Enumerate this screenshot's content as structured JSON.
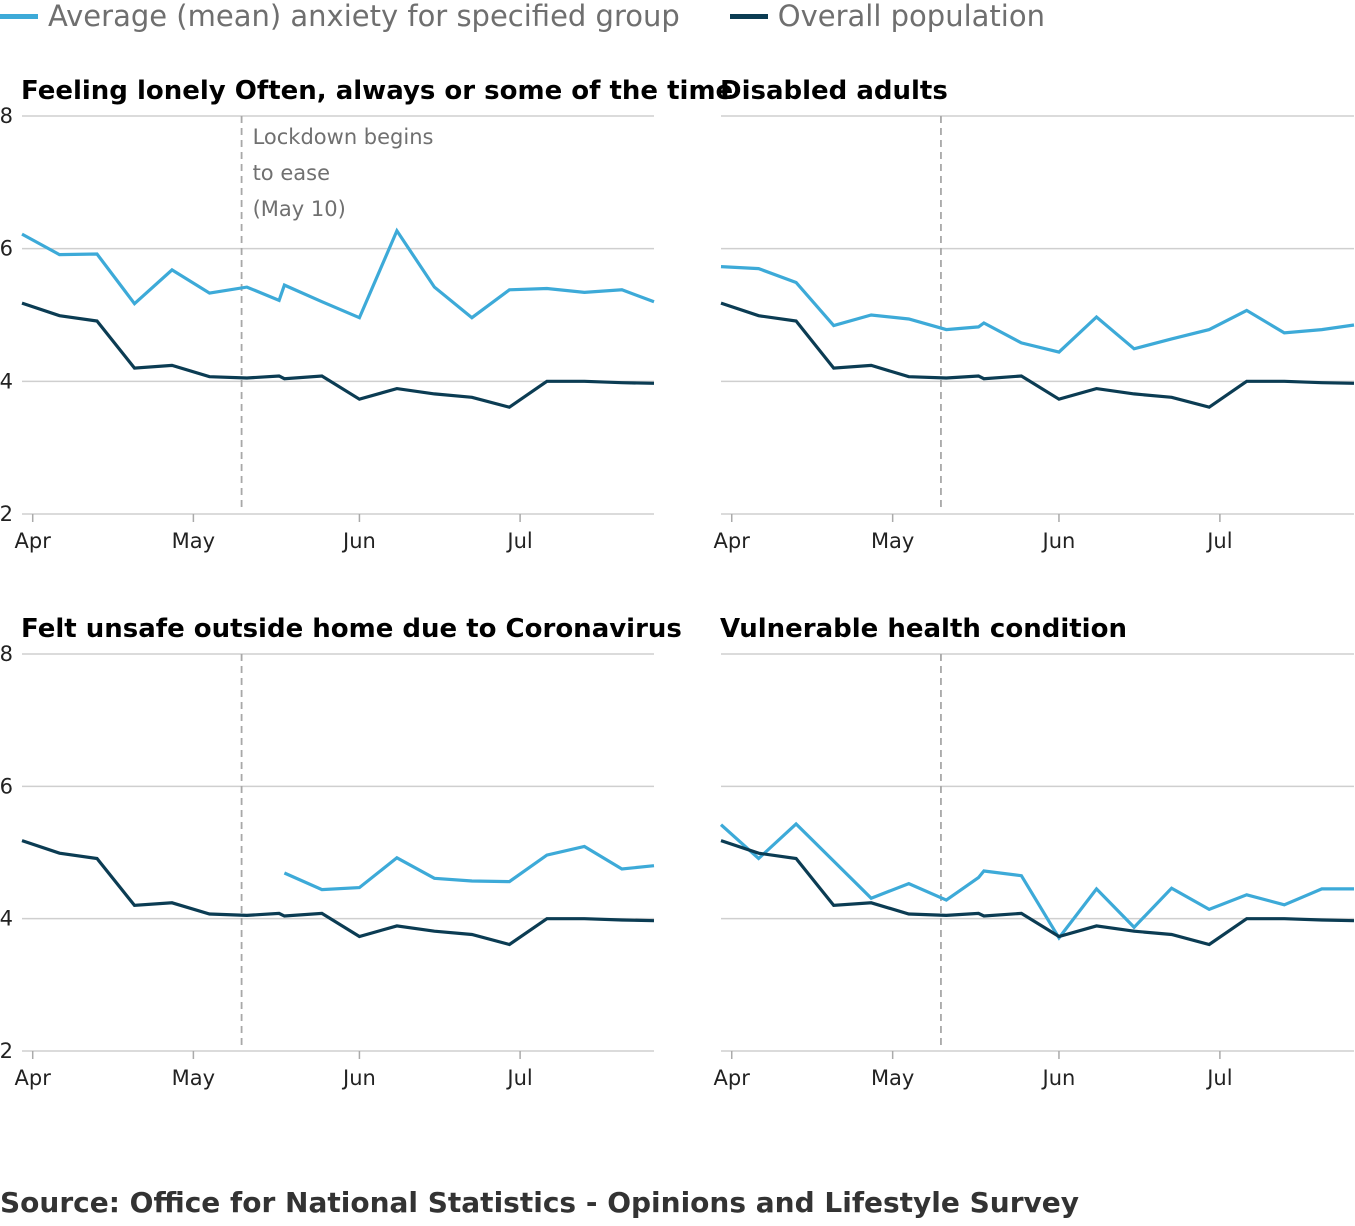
{
  "legend": {
    "group_label": "Average (mean) anxiety for specified group",
    "overall_label": "Overall population"
  },
  "colors": {
    "group": "#3daad8",
    "overall": "#0b3c53",
    "grid": "#cfcfcf",
    "marker": "#a8a8a8"
  },
  "source": "Source: Office for National Statistics - Opinions and Lifestyle Survey",
  "annotation": {
    "lines": [
      "Lockdown begins",
      "to ease",
      "(May 10)"
    ],
    "date": "May 10"
  },
  "chart_data": [
    {
      "type": "line",
      "title": "Feeling lonely Often, always or some of the time",
      "xticks": [
        "Apr",
        "May",
        "Jun",
        "Jul"
      ],
      "yticks": [
        2,
        4,
        6,
        8
      ],
      "ylim": [
        2,
        8
      ],
      "x": [
        "Mar 30",
        "Apr 6",
        "Apr 13",
        "Apr 20",
        "Apr 27",
        "May 4",
        "May 11",
        "May 17",
        "May 18",
        "May 25",
        "Jun 1",
        "Jun 8",
        "Jun 15",
        "Jun 22",
        "Jun 29",
        "Jul 6",
        "Jul 13",
        "Jul 20",
        "Jul 26"
      ],
      "series": [
        {
          "name": "Average (mean) anxiety for specified group",
          "values": [
            6.22,
            5.91,
            5.92,
            5.17,
            5.68,
            5.33,
            5.42,
            5.22,
            5.45,
            5.2,
            4.96,
            6.27,
            5.42,
            4.96,
            5.38,
            5.4,
            5.34,
            5.38,
            5.2
          ]
        },
        {
          "name": "Overall population",
          "values": [
            5.18,
            4.99,
            4.91,
            4.2,
            4.24,
            4.07,
            4.05,
            4.08,
            4.04,
            4.08,
            3.73,
            3.89,
            3.81,
            3.76,
            3.61,
            4.0,
            4.0,
            3.98,
            3.97
          ]
        }
      ]
    },
    {
      "type": "line",
      "title": "Disabled adults",
      "xticks": [
        "Apr",
        "May",
        "Jun",
        "Jul"
      ],
      "yticks": [
        2,
        4,
        6,
        8
      ],
      "ylim": [
        2,
        8
      ],
      "x": [
        "Mar 30",
        "Apr 6",
        "Apr 13",
        "Apr 20",
        "Apr 27",
        "May 4",
        "May 11",
        "May 17",
        "May 18",
        "May 25",
        "Jun 1",
        "Jun 8",
        "Jun 15",
        "Jun 22",
        "Jun 29",
        "Jul 6",
        "Jul 13",
        "Jul 20",
        "Jul 26"
      ],
      "series": [
        {
          "name": "Average (mean) anxiety for specified group",
          "values": [
            5.73,
            5.7,
            5.49,
            4.84,
            5.0,
            4.94,
            4.78,
            4.82,
            4.88,
            4.58,
            4.44,
            4.97,
            4.49,
            4.64,
            4.78,
            5.07,
            4.73,
            4.78,
            4.85
          ]
        },
        {
          "name": "Overall population",
          "values": [
            5.18,
            4.99,
            4.91,
            4.2,
            4.24,
            4.07,
            4.05,
            4.08,
            4.04,
            4.08,
            3.73,
            3.89,
            3.81,
            3.76,
            3.61,
            4.0,
            4.0,
            3.98,
            3.97
          ]
        }
      ]
    },
    {
      "type": "line",
      "title": "Felt unsafe outside home due to Coronavirus",
      "xticks": [
        "Apr",
        "May",
        "Jun",
        "Jul"
      ],
      "yticks": [
        2,
        4,
        6,
        8
      ],
      "ylim": [
        2,
        8
      ],
      "x": [
        "Mar 30",
        "Apr 6",
        "Apr 13",
        "Apr 20",
        "Apr 27",
        "May 4",
        "May 11",
        "May 17",
        "May 18",
        "May 25",
        "Jun 1",
        "Jun 8",
        "Jun 15",
        "Jun 22",
        "Jun 29",
        "Jul 6",
        "Jul 13",
        "Jul 20",
        "Jul 26"
      ],
      "series": [
        {
          "name": "Average (mean) anxiety for specified group",
          "values": [
            null,
            null,
            null,
            null,
            null,
            null,
            null,
            null,
            4.69,
            4.44,
            4.47,
            4.92,
            4.61,
            4.57,
            4.56,
            4.96,
            5.09,
            4.75,
            4.8
          ]
        },
        {
          "name": "Overall population",
          "values": [
            5.18,
            4.99,
            4.91,
            4.2,
            4.24,
            4.07,
            4.05,
            4.08,
            4.04,
            4.08,
            3.73,
            3.89,
            3.81,
            3.76,
            3.61,
            4.0,
            4.0,
            3.98,
            3.97
          ]
        }
      ]
    },
    {
      "type": "line",
      "title": "Vulnerable health condition",
      "xticks": [
        "Apr",
        "May",
        "Jun",
        "Jul"
      ],
      "yticks": [
        2,
        4,
        6,
        8
      ],
      "ylim": [
        2,
        8
      ],
      "x": [
        "Mar 30",
        "Apr 6",
        "Apr 13",
        "Apr 20",
        "Apr 27",
        "May 4",
        "May 11",
        "May 17",
        "May 18",
        "May 25",
        "Jun 1",
        "Jun 8",
        "Jun 15",
        "Jun 22",
        "Jun 29",
        "Jul 6",
        "Jul 13",
        "Jul 20",
        "Jul 26"
      ],
      "series": [
        {
          "name": "Average (mean) anxiety for specified group",
          "values": [
            5.42,
            4.91,
            5.43,
            4.87,
            4.31,
            4.53,
            4.28,
            4.62,
            4.72,
            4.65,
            3.71,
            4.45,
            3.87,
            4.46,
            4.14,
            4.36,
            4.21,
            4.45,
            4.45
          ]
        },
        {
          "name": "Overall population",
          "values": [
            5.18,
            4.99,
            4.91,
            4.2,
            4.24,
            4.07,
            4.05,
            4.08,
            4.04,
            4.08,
            3.73,
            3.89,
            3.81,
            3.76,
            3.61,
            4.0,
            4.0,
            3.98,
            3.97
          ]
        }
      ]
    }
  ]
}
